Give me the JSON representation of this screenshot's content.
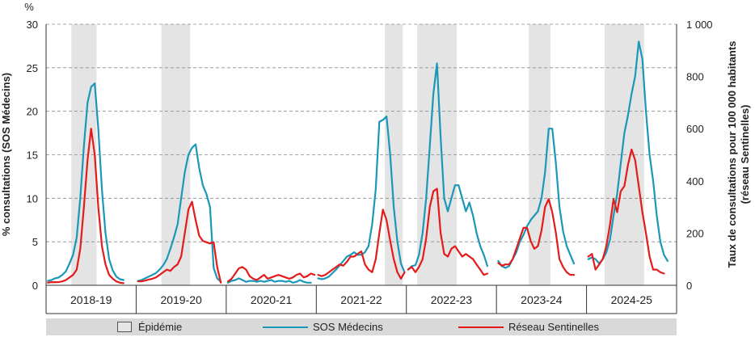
{
  "chart_data": {
    "type": "line",
    "y_unit_label": "%",
    "ylabel_left": "% consultations  (SOS Médecins)",
    "ylabel_right_line1": "Taux de consultations  pour 100 000 habitants",
    "ylabel_right_line2": "(réseau Sentinelles)",
    "ylim_left": [
      0,
      30
    ],
    "ylim_right": [
      0,
      1000
    ],
    "yticks_left": [
      "0",
      "5",
      "10",
      "15",
      "20",
      "25",
      "30"
    ],
    "yticks_right": [
      "0",
      "200",
      "400",
      "600",
      "800",
      "1 000"
    ],
    "grid": "horizontal dashed",
    "seasons": [
      "2018-19",
      "2019-20",
      "2020-21",
      "2021-22",
      "2022-23",
      "2023-24",
      "2024-25"
    ],
    "weeks_per_season": 25,
    "epidemic_periods": [
      {
        "season": "2018-19",
        "start_week": 7,
        "end_week": 14
      },
      {
        "season": "2019-20",
        "start_week": 7,
        "end_week": 15
      },
      {
        "season": "2021-22",
        "start_week": 19,
        "end_week": 24
      },
      {
        "season": "2022-23",
        "start_week": 3,
        "end_week": 14
      },
      {
        "season": "2023-24",
        "start_week": 9,
        "end_week": 15
      },
      {
        "season": "2024-25",
        "start_week": 5,
        "end_week": 16
      }
    ],
    "series": [
      {
        "name": "SOS Médecins",
        "color": "#1b97b8",
        "axis": "left",
        "values_by_season": [
          [
            0.5,
            0.6,
            0.8,
            0.9,
            1.2,
            1.6,
            2.5,
            3.5,
            5.5,
            10,
            16,
            21,
            22.8,
            23.2,
            18,
            11,
            6,
            3,
            1.7,
            1,
            0.7,
            0.6
          ],
          [
            0.5,
            0.6,
            0.8,
            1,
            1.2,
            1.4,
            1.8,
            2.3,
            3,
            4.2,
            5.5,
            7,
            10,
            13,
            15,
            15.8,
            16.2,
            13.5,
            11.5,
            10.5,
            9,
            2,
            0.8,
            0.4
          ],
          [
            0.3,
            0.5,
            0.6,
            0.8,
            0.6,
            0.4,
            0.5,
            0.5,
            0.4,
            0.5,
            0.4,
            0.5,
            0.6,
            0.4,
            0.5,
            0.5,
            0.4,
            0.5,
            0.3,
            0.4,
            0.6,
            0.4,
            0.3,
            0.3
          ],
          [
            0.8,
            0.7,
            0.8,
            1,
            1.4,
            1.8,
            2.3,
            2.8,
            3.3,
            3.5,
            3.8,
            3.5,
            3.5,
            3.8,
            4.5,
            7,
            11,
            18.8,
            19,
            19.4,
            15,
            9,
            5,
            2.5,
            1.5
          ],
          [
            1.8,
            2.2,
            2.3,
            3.5,
            6,
            10,
            16,
            22,
            25.5,
            17,
            10,
            8.5,
            10,
            11.5,
            11.5,
            10,
            8.5,
            9.5,
            8,
            6,
            4.5,
            3.5,
            2.2
          ],
          [
            2.8,
            2.2,
            2,
            2.2,
            3,
            3.8,
            5,
            5.8,
            6.8,
            7.5,
            8,
            8.5,
            10,
            13,
            18,
            18,
            14,
            9,
            6.2,
            4.5,
            3.5,
            2.5
          ],
          [
            3,
            3.2,
            3,
            2.5,
            3,
            3.8,
            5.2,
            8,
            10.5,
            14,
            17.5,
            19.5,
            22,
            24,
            28,
            26,
            20,
            15,
            12,
            8,
            5,
            3.5,
            2.8
          ]
        ]
      },
      {
        "name": "Réseau Sentinelles",
        "color": "#e31b1b",
        "axis": "right",
        "values_by_season": [
          [
            10,
            12,
            12,
            12,
            15,
            20,
            30,
            40,
            60,
            140,
            300,
            480,
            600,
            500,
            300,
            150,
            80,
            40,
            25,
            15,
            10,
            8
          ],
          [
            15,
            15,
            18,
            22,
            25,
            30,
            40,
            50,
            60,
            55,
            70,
            80,
            110,
            200,
            290,
            320,
            250,
            190,
            170,
            165,
            160,
            165,
            70,
            10
          ],
          [
            15,
            25,
            45,
            65,
            70,
            60,
            35,
            25,
            20,
            30,
            40,
            25,
            30,
            35,
            40,
            35,
            30,
            25,
            30,
            40,
            45,
            30,
            35,
            45,
            40
          ],
          [
            40,
            35,
            40,
            50,
            60,
            70,
            80,
            75,
            90,
            110,
            110,
            120,
            130,
            80,
            60,
            50,
            100,
            200,
            290,
            250,
            170,
            100,
            50,
            25,
            50
          ],
          [
            60,
            70,
            50,
            70,
            100,
            180,
            300,
            360,
            370,
            200,
            120,
            110,
            140,
            150,
            130,
            110,
            120,
            110,
            100,
            80,
            60,
            40,
            45
          ],
          [
            85,
            75,
            80,
            80,
            100,
            140,
            180,
            220,
            220,
            170,
            140,
            150,
            210,
            300,
            330,
            280,
            200,
            100,
            70,
            50,
            40,
            40
          ],
          [
            110,
            120,
            60,
            80,
            100,
            150,
            230,
            330,
            280,
            360,
            380,
            460,
            520,
            480,
            380,
            280,
            200,
            110,
            60,
            60,
            50,
            45
          ]
        ]
      }
    ]
  },
  "legend": {
    "epidemic_label": "Épidémie",
    "sos_label": "SOS Médecins",
    "sentinel_label": "Réseau Sentinelles"
  }
}
